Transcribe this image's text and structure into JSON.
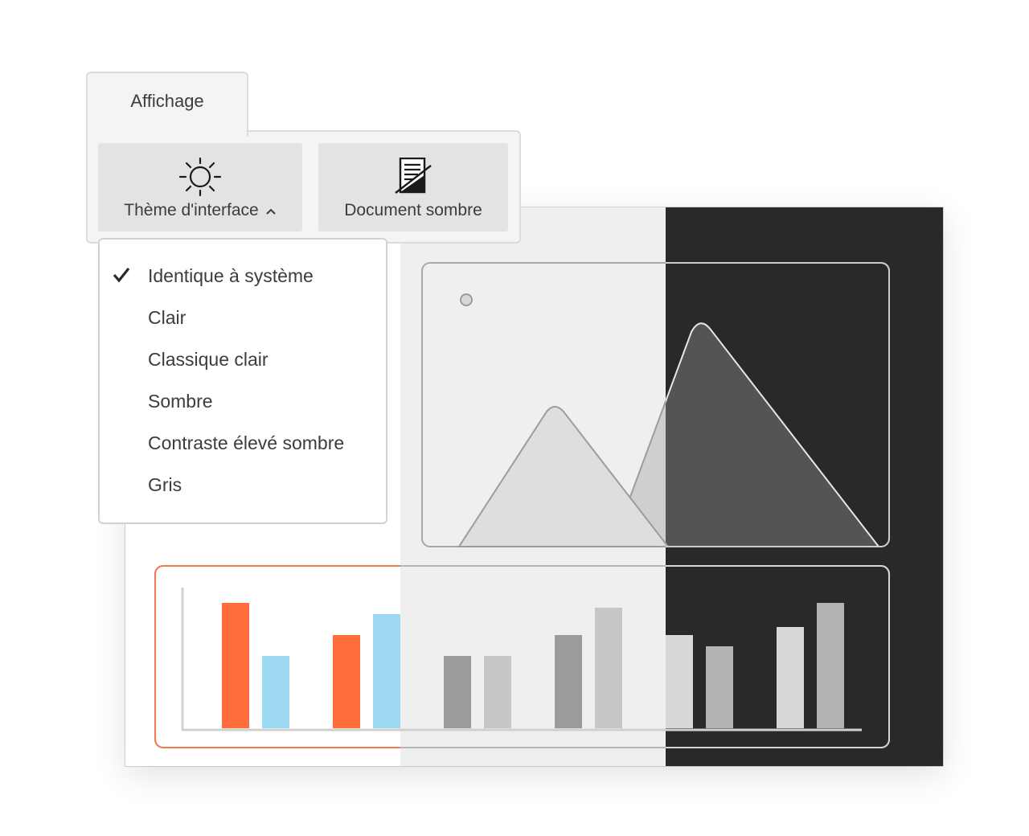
{
  "ribbon": {
    "tab_label": "Affichage",
    "buttons": {
      "theme": {
        "label": "Thème d'interface",
        "icon": "sun-icon"
      },
      "dark_document": {
        "label": "Document sombre",
        "icon": "dark-document-icon"
      }
    }
  },
  "theme_menu": {
    "selected": "Identique à système",
    "items": [
      {
        "label": "Identique à système",
        "checked": true
      },
      {
        "label": "Clair",
        "checked": false
      },
      {
        "label": "Classique clair",
        "checked": false
      },
      {
        "label": "Sombre",
        "checked": false
      },
      {
        "label": "Contraste élevé sombre",
        "checked": false
      },
      {
        "label": "Gris",
        "checked": false
      }
    ]
  },
  "preview": {
    "sections": [
      "light",
      "gray",
      "dark"
    ],
    "colors": {
      "light_bg": "#ffffff",
      "gray_bg": "#efefef",
      "dark_bg": "#282a29",
      "accent_orange": "#ff6d3d",
      "accent_blue": "#9dd9f2",
      "chart_frame_highlight": "#f07a4e"
    }
  }
}
